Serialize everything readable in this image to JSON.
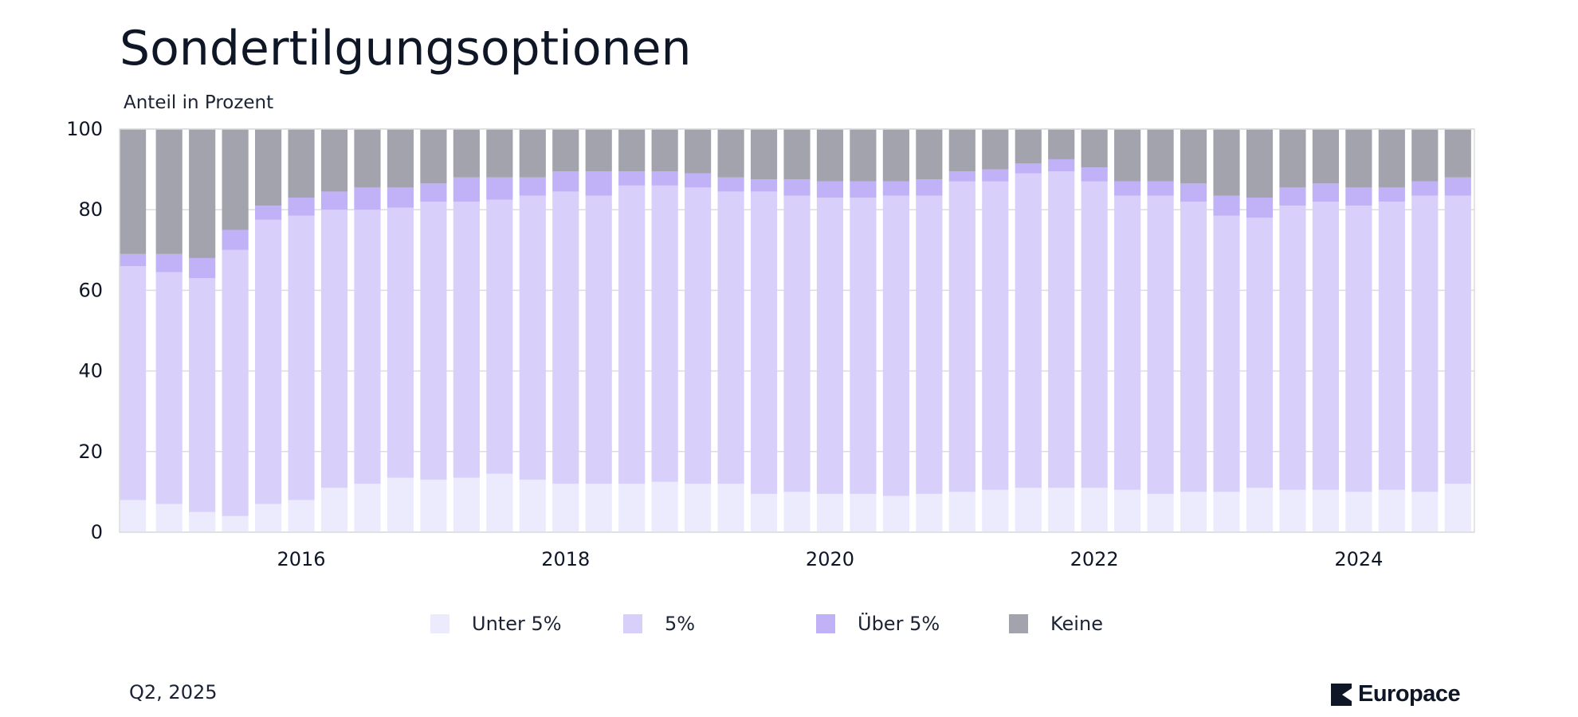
{
  "header": {
    "title": "Sondertilgungsoptionen",
    "subtitle": "Anteil in Prozent"
  },
  "footer": {
    "date_label": "Q2, 2025",
    "brand": "Europace",
    "brand_icon": "europace-logo-icon"
  },
  "colors": {
    "Unter 5%": "#ecebfd",
    "5%": "#d8d0fa",
    "Über 5%": "#c1b1f7",
    "Keine": "#a3a3ad",
    "grid": "#dcdce0",
    "text": "#0f1626"
  },
  "chart_data": {
    "type": "bar",
    "stacked": true,
    "title": "Sondertilgungsoptionen",
    "ylabel": "Anteil in Prozent",
    "xlabel": "",
    "ylim": [
      0,
      100
    ],
    "y_ticks": [
      "0",
      "20",
      "40",
      "60",
      "80",
      "100"
    ],
    "x_tick_labels": [
      "2016",
      "2018",
      "2020",
      "2022",
      "2024"
    ],
    "x_tick_quarter_index": [
      5,
      13,
      21,
      29,
      37
    ],
    "grid": "horizontal",
    "legend_position": "bottom",
    "categories": [
      "Q4 2014",
      "Q1 2015",
      "Q2 2015",
      "Q3 2015",
      "Q4 2015",
      "Q1 2016",
      "Q2 2016",
      "Q3 2016",
      "Q4 2016",
      "Q1 2017",
      "Q2 2017",
      "Q3 2017",
      "Q4 2017",
      "Q1 2018",
      "Q2 2018",
      "Q3 2018",
      "Q4 2018",
      "Q1 2019",
      "Q2 2019",
      "Q3 2019",
      "Q4 2019",
      "Q1 2020",
      "Q2 2020",
      "Q3 2020",
      "Q4 2020",
      "Q1 2021",
      "Q2 2021",
      "Q3 2021",
      "Q4 2021",
      "Q1 2022",
      "Q2 2022",
      "Q3 2022",
      "Q4 2022",
      "Q1 2023",
      "Q2 2023",
      "Q3 2023",
      "Q4 2023",
      "Q1 2024",
      "Q2 2024",
      "Q3 2024",
      "Q4 2024"
    ],
    "series": [
      {
        "name": "Unter 5%",
        "values": [
          8,
          7,
          5,
          4,
          7,
          8,
          11,
          12,
          13.5,
          13,
          13.5,
          14.5,
          13,
          12,
          12,
          12,
          12.5,
          12,
          12,
          9.5,
          10,
          9.5,
          9.5,
          9,
          9.5,
          10,
          10.5,
          11,
          11,
          11,
          10.5,
          9.5,
          10,
          10,
          11,
          10.5,
          10.5,
          10,
          10.5,
          10,
          12
        ]
      },
      {
        "name": "5%",
        "values": [
          58,
          57.5,
          58,
          66,
          70.5,
          70.5,
          69,
          68,
          67,
          69,
          68.5,
          68,
          70.5,
          72.5,
          71.5,
          74,
          73.5,
          73.5,
          72.5,
          75,
          73.5,
          73.5,
          73.5,
          74.5,
          74,
          77,
          76.5,
          78,
          78.5,
          76,
          73,
          74,
          72,
          68.5,
          67,
          70.5,
          71.5,
          71,
          71.5,
          73.5,
          71.5
        ]
      },
      {
        "name": "Über 5%",
        "values": [
          3,
          4.5,
          5,
          5,
          3.5,
          4.5,
          4.5,
          5.5,
          5,
          4.5,
          6,
          5.5,
          4.5,
          5,
          6,
          3.5,
          3.5,
          3.5,
          3.5,
          3,
          4,
          4,
          4,
          3.5,
          4,
          2.5,
          3,
          2.5,
          3,
          3.5,
          3.5,
          3.5,
          4.5,
          5,
          5,
          4.5,
          4.5,
          4.5,
          3.5,
          3.5,
          4.5
        ]
      },
      {
        "name": "Keine",
        "values": [
          31,
          31,
          32,
          25,
          19,
          17,
          15.5,
          14.5,
          14.5,
          13.5,
          12,
          12,
          12,
          10.5,
          10.5,
          10.5,
          10.5,
          11,
          12,
          12.5,
          12.5,
          13,
          13,
          13,
          12.5,
          10.5,
          10,
          8.5,
          7.5,
          9.5,
          13,
          13,
          13.5,
          16.5,
          17,
          14.5,
          13.5,
          14.5,
          14.5,
          13,
          12
        ]
      }
    ]
  },
  "legend": [
    {
      "name": "Unter 5%",
      "color": "#ecebfd"
    },
    {
      "name": "5%",
      "color": "#d8d0fa"
    },
    {
      "name": "Über 5%",
      "color": "#c1b1f7"
    },
    {
      "name": "Keine",
      "color": "#a3a3ad"
    }
  ]
}
